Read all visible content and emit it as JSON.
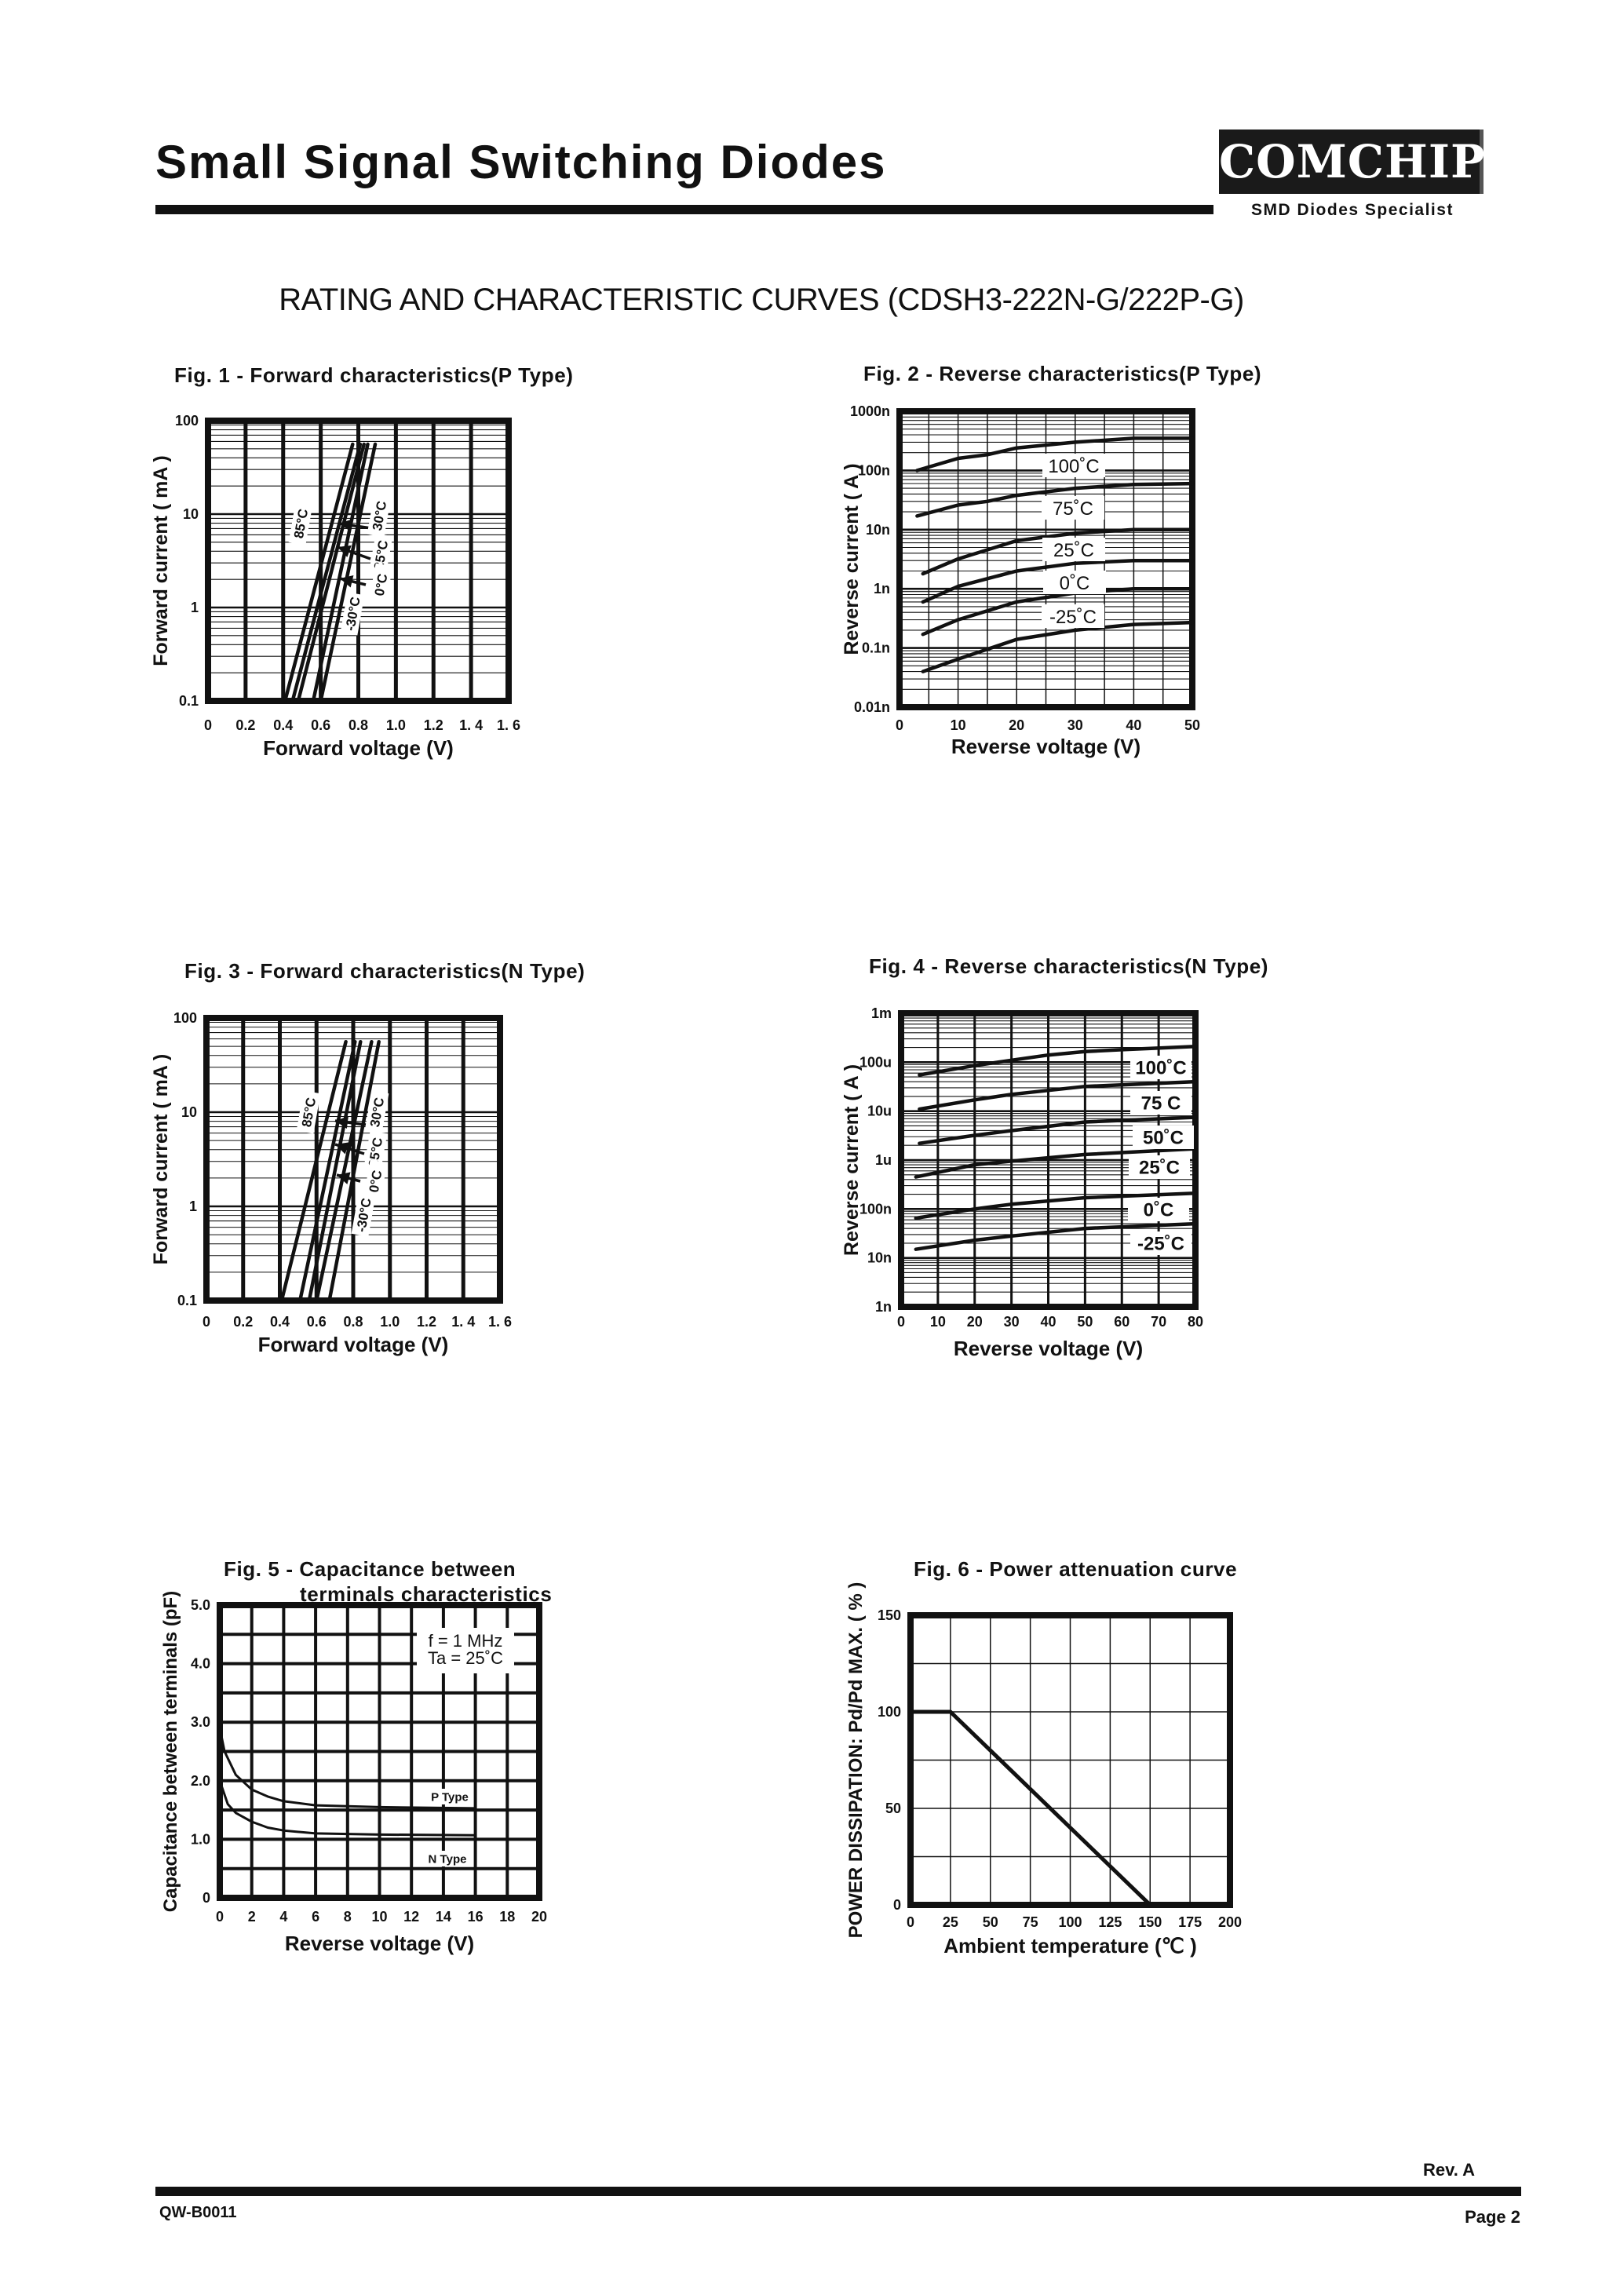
{
  "header": {
    "title": "Small Signal Switching Diodes",
    "logo_text": "COMCHIP",
    "logo_tagline": "SMD Diodes Specialist",
    "subtitle": "RATING AND CHARACTERISTIC CURVES (CDSH3-222N-G/222P-G)"
  },
  "footer": {
    "revision": "Rev. A",
    "doc_code": "QW-B0011",
    "page": "Page 2"
  },
  "chart_data": [
    {
      "type": "line",
      "title": "Fig. 1 -  Forward characteristics(P Type)",
      "xlabel": "Forward voltage (V)",
      "ylabel": "Forward current ( mA )",
      "xlim": [
        0,
        1.6
      ],
      "ylim": [
        0.1,
        100
      ],
      "yscale": "log",
      "grid": true,
      "xticks": [
        0,
        0.2,
        0.4,
        0.6,
        0.8,
        1.0,
        1.2,
        1.4,
        1.6
      ],
      "xtick_labels": [
        "0",
        "0.2",
        "0.4",
        "0.6",
        "0.8",
        "1.0",
        "1.2",
        "1. 4",
        "1. 6"
      ],
      "yticks": [
        0.1,
        1,
        10,
        100
      ],
      "ytick_labels": [
        "0.1",
        "1",
        "10",
        "100"
      ],
      "series": [
        {
          "name": "85°C",
          "x": [
            0.41,
            0.77
          ],
          "y": [
            0.1,
            56
          ]
        },
        {
          "name": "30°C",
          "x": [
            0.45,
            0.81
          ],
          "y": [
            0.1,
            56
          ]
        },
        {
          "name": "25°C",
          "x": [
            0.48,
            0.83
          ],
          "y": [
            0.1,
            56
          ]
        },
        {
          "name": "0°C",
          "x": [
            0.56,
            0.85
          ],
          "y": [
            0.1,
            56
          ]
        },
        {
          "name": "-30°C",
          "x": [
            0.6,
            0.89
          ],
          "y": [
            0.1,
            56
          ]
        }
      ]
    },
    {
      "type": "line",
      "title": "Fig. 2 -  Reverse characteristics(P Type)",
      "xlabel": "Reverse voltage (V)",
      "ylabel": "Reverse  current ( A )",
      "xlim": [
        0,
        50
      ],
      "ylim": [
        1e-11,
        1e-06
      ],
      "yscale": "log",
      "grid": true,
      "xticks": [
        0,
        10,
        20,
        30,
        40,
        50
      ],
      "xtick_labels": [
        "0",
        "10",
        "20",
        "30",
        "40",
        "50"
      ],
      "yticks": [
        1e-11,
        1e-10,
        1e-09,
        1e-08,
        1e-07,
        1e-06
      ],
      "ytick_labels": [
        "0.01n",
        "0.1n",
        "1n",
        "10n",
        "100n",
        "1000n"
      ],
      "annotations": [
        "100˚C",
        "75˚C",
        "25˚C",
        "0˚C",
        "-25˚C"
      ],
      "series": [
        {
          "x": [
            3,
            10,
            15,
            20,
            30,
            40,
            50
          ],
          "y": [
            1e-07,
            1.6e-07,
            1.85e-07,
            2.4e-07,
            3e-07,
            3.5e-07,
            3.5e-07
          ]
        },
        {
          "x": [
            3,
            10,
            15,
            20,
            30,
            40,
            50
          ],
          "y": [
            1.7e-08,
            2.6e-08,
            3e-08,
            3.8e-08,
            5e-08,
            5.8e-08,
            6e-08
          ]
        },
        {
          "x": [
            4,
            10,
            20,
            30,
            40,
            50
          ],
          "y": [
            1.8e-09,
            3.2e-09,
            6.5e-09,
            8.7e-09,
            1e-08,
            1e-08
          ]
        },
        {
          "x": [
            4,
            10,
            20,
            30,
            40,
            50
          ],
          "y": [
            6e-10,
            1.1e-09,
            2e-09,
            2.7e-09,
            3e-09,
            3e-09
          ]
        },
        {
          "x": [
            4,
            10,
            20,
            30,
            40,
            50
          ],
          "y": [
            1.7e-10,
            3e-10,
            6e-10,
            8.5e-10,
            1e-09,
            1e-09
          ]
        },
        {
          "x": [
            4,
            10,
            20,
            30,
            40,
            50
          ],
          "y": [
            4e-11,
            6.5e-11,
            1.4e-10,
            2e-10,
            2.5e-10,
            2.7e-10
          ]
        }
      ]
    },
    {
      "type": "line",
      "title": "Fig. 3 -  Forward characteristics(N Type)",
      "xlabel": "Forward voltage (V)",
      "ylabel": "Forward current ( mA )",
      "xlim": [
        0,
        1.6
      ],
      "ylim": [
        0.1,
        100
      ],
      "yscale": "log",
      "grid": true,
      "xticks": [
        0,
        0.2,
        0.4,
        0.6,
        0.8,
        1.0,
        1.2,
        1.4,
        1.6
      ],
      "xtick_labels": [
        "0",
        "0.2",
        "0.4",
        "0.6",
        "0.8",
        "1.0",
        "1.2",
        "1. 4",
        "1. 6"
      ],
      "yticks": [
        0.1,
        1,
        10,
        100
      ],
      "ytick_labels": [
        "0.1",
        "1",
        "10",
        "100"
      ],
      "series": [
        {
          "name": "85°C",
          "x": [
            0.41,
            0.76
          ],
          "y": [
            0.1,
            56
          ]
        },
        {
          "name": "30°C",
          "x": [
            0.51,
            0.81
          ],
          "y": [
            0.1,
            56
          ]
        },
        {
          "name": "25°C",
          "x": [
            0.56,
            0.84
          ],
          "y": [
            0.1,
            56
          ]
        },
        {
          "name": "0°C",
          "x": [
            0.6,
            0.9
          ],
          "y": [
            0.1,
            56
          ]
        },
        {
          "name": "-30°C",
          "x": [
            0.67,
            0.94
          ],
          "y": [
            0.1,
            56
          ]
        }
      ]
    },
    {
      "type": "line",
      "title": "Fig. 4 -  Reverse characteristics(N Type)",
      "xlabel": "Reverse voltage (V)",
      "ylabel": "Reverse  current ( A )",
      "xlim": [
        0,
        80
      ],
      "ylim": [
        1e-09,
        0.001
      ],
      "yscale": "log",
      "grid": true,
      "xticks": [
        0,
        10,
        20,
        30,
        40,
        50,
        60,
        70,
        80
      ],
      "xtick_labels": [
        "0",
        "10",
        "20",
        "30",
        "40",
        "50",
        "60",
        "70",
        "80"
      ],
      "yticks": [
        1e-09,
        1e-08,
        1e-07,
        1e-06,
        1e-05,
        0.0001,
        0.001
      ],
      "ytick_labels": [
        "1n",
        "10n",
        "100n",
        "1u",
        "10u",
        "100u",
        "1m"
      ],
      "series": [
        {
          "name": "100˚C",
          "x": [
            5,
            20,
            30,
            40,
            50,
            60,
            80
          ],
          "y": [
            5.5e-05,
            8.5e-05,
            0.00011,
            0.00014,
            0.000165,
            0.00018,
            0.00021
          ]
        },
        {
          "name": "75  C",
          "x": [
            5,
            20,
            30,
            50,
            80
          ],
          "y": [
            1.1e-05,
            1.7e-05,
            2.2e-05,
            3.2e-05,
            4e-05
          ]
        },
        {
          "name": "50˚C",
          "x": [
            5,
            20,
            30,
            50,
            80
          ],
          "y": [
            2.2e-06,
            3.2e-06,
            4e-06,
            6e-06,
            7.5e-06
          ]
        },
        {
          "name": "25˚C",
          "x": [
            4,
            20,
            30,
            50,
            80
          ],
          "y": [
            4.5e-07,
            8e-07,
            9.5e-07,
            1.3e-06,
            1.7e-06
          ]
        },
        {
          "name": "0˚C",
          "x": [
            4,
            20,
            30,
            50,
            80
          ],
          "y": [
            6.5e-08,
            1e-07,
            1.25e-07,
            1.7e-07,
            2.1e-07
          ]
        },
        {
          "name": "-25˚C",
          "x": [
            4,
            20,
            30,
            50,
            80
          ],
          "y": [
            1.5e-08,
            2.3e-08,
            2.8e-08,
            4e-08,
            5e-08
          ]
        }
      ]
    },
    {
      "type": "line",
      "title": "Fig. 5 -  Capacitance between",
      "title_line2": "terminals characteristics",
      "xlabel": "Reverse voltage (V)",
      "ylabel": "Capacitance between terminals (pF)",
      "xlim": [
        0,
        20
      ],
      "ylim": [
        0,
        5
      ],
      "yscale": "linear",
      "grid": true,
      "xticks": [
        0,
        2,
        4,
        6,
        8,
        10,
        12,
        14,
        16,
        18,
        20
      ],
      "xtick_labels": [
        "0",
        "2",
        "4",
        "6",
        "8",
        "10",
        "12",
        "14",
        "16",
        "18",
        "20"
      ],
      "yticks": [
        0,
        1,
        2,
        3,
        4,
        5
      ],
      "ytick_labels": [
        "0",
        "1.0",
        "2.0",
        "3.0",
        "4.0",
        "5.0"
      ],
      "conditions": [
        "f = 1 MHz",
        "Ta = 25˚C"
      ],
      "series": [
        {
          "name": "P Type",
          "x": [
            0,
            0.3,
            1,
            2,
            3,
            4,
            6,
            10,
            16
          ],
          "y": [
            2.9,
            2.5,
            2.1,
            1.85,
            1.73,
            1.65,
            1.58,
            1.55,
            1.53
          ]
        },
        {
          "name": "N Type",
          "x": [
            0,
            0.5,
            1,
            2,
            3,
            4,
            6,
            10,
            16
          ],
          "y": [
            2.0,
            1.6,
            1.45,
            1.3,
            1.2,
            1.15,
            1.1,
            1.08,
            1.07
          ]
        }
      ]
    },
    {
      "type": "line",
      "title": "Fig. 6 - Power attenuation curve",
      "xlabel": "Ambient temperature (℃ )",
      "ylabel": "POWER DISSIPATION: Pd/Pd MAX. ( % )",
      "xlim": [
        0,
        200
      ],
      "ylim": [
        0,
        150
      ],
      "yscale": "linear",
      "grid": true,
      "xticks": [
        0,
        25,
        50,
        75,
        100,
        125,
        150,
        175,
        200
      ],
      "xtick_labels": [
        "0",
        "25",
        "50",
        "75",
        "100",
        "125",
        "150",
        "175",
        "200"
      ],
      "yticks": [
        0,
        50,
        100,
        150
      ],
      "ytick_labels": [
        "0",
        "50",
        "100",
        "150"
      ],
      "series": [
        {
          "x": [
            0,
            25,
            150
          ],
          "y": [
            100,
            100,
            0
          ]
        }
      ]
    }
  ]
}
